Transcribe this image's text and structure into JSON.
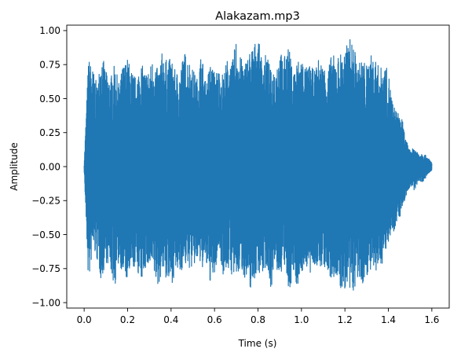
{
  "chart_data": {
    "type": "line",
    "title": "Alakazam.mp3",
    "xlabel": "Time (s)",
    "ylabel": "Amplitude",
    "xlim": [
      -0.08,
      1.68
    ],
    "ylim": [
      -1.04,
      1.04
    ],
    "x_ticks": [
      0.0,
      0.2,
      0.4,
      0.6,
      0.8,
      1.0,
      1.2,
      1.4,
      1.6
    ],
    "x_tick_labels": [
      "0.0",
      "0.2",
      "0.4",
      "0.6",
      "0.8",
      "1.0",
      "1.2",
      "1.4",
      "1.6"
    ],
    "y_ticks": [
      -1.0,
      -0.75,
      -0.5,
      -0.25,
      0.0,
      0.25,
      0.5,
      0.75,
      1.0
    ],
    "y_tick_labels": [
      "−1.00",
      "−0.75",
      "−0.50",
      "−0.25",
      "0.00",
      "0.25",
      "0.50",
      "0.75",
      "1.00"
    ],
    "grid": false,
    "line_color": "#1f77b4",
    "series": [
      {
        "x": [
          0.0,
          0.02,
          0.04,
          0.06,
          0.08,
          0.1,
          0.12,
          0.14,
          0.16,
          0.18,
          0.2,
          0.22,
          0.24,
          0.26,
          0.28,
          0.3,
          0.32,
          0.34,
          0.36,
          0.38,
          0.4,
          0.42,
          0.44,
          0.46,
          0.48,
          0.5,
          0.52,
          0.54,
          0.56,
          0.58,
          0.6,
          0.62,
          0.64,
          0.66,
          0.68,
          0.7,
          0.72,
          0.74,
          0.76,
          0.78,
          0.8,
          0.82,
          0.84,
          0.86,
          0.88,
          0.9,
          0.92,
          0.94,
          0.96,
          0.98,
          1.0,
          1.02,
          1.04,
          1.06,
          1.08,
          1.1,
          1.12,
          1.14,
          1.16,
          1.18,
          1.2,
          1.22,
          1.24,
          1.26,
          1.28,
          1.3,
          1.32,
          1.34,
          1.36,
          1.38,
          1.4,
          1.42,
          1.44,
          1.46,
          1.48,
          1.5,
          1.52,
          1.54,
          1.56,
          1.58,
          1.6
        ],
        "upper": [
          0.02,
          0.8,
          0.72,
          0.6,
          0.85,
          0.7,
          0.65,
          0.75,
          0.62,
          0.75,
          0.8,
          0.7,
          0.65,
          0.77,
          0.7,
          0.72,
          0.82,
          0.7,
          0.85,
          0.78,
          0.8,
          0.7,
          0.7,
          0.85,
          0.8,
          0.72,
          0.65,
          0.85,
          0.6,
          0.77,
          0.7,
          0.72,
          0.68,
          0.8,
          0.75,
          0.95,
          0.8,
          0.77,
          0.85,
          0.9,
          0.95,
          0.78,
          0.84,
          0.7,
          0.75,
          0.85,
          0.8,
          0.9,
          0.7,
          0.78,
          0.82,
          0.73,
          0.75,
          0.7,
          0.8,
          0.75,
          0.72,
          0.83,
          0.8,
          0.84,
          0.85,
          0.95,
          0.9,
          0.75,
          0.8,
          0.75,
          0.82,
          0.8,
          0.72,
          0.76,
          0.7,
          0.47,
          0.4,
          0.38,
          0.2,
          0.12,
          0.14,
          0.1,
          0.1,
          0.07,
          0.03
        ],
        "lower": [
          -0.02,
          -0.88,
          -0.6,
          -0.7,
          -0.85,
          -0.7,
          -0.75,
          -0.9,
          -0.7,
          -0.8,
          -0.85,
          -0.78,
          -0.72,
          -0.88,
          -0.75,
          -0.75,
          -0.8,
          -0.9,
          -0.75,
          -0.85,
          -0.88,
          -0.78,
          -0.8,
          -0.72,
          -0.75,
          -0.75,
          -0.7,
          -0.75,
          -0.73,
          -0.85,
          -0.82,
          -0.6,
          -0.8,
          -0.75,
          -0.8,
          -0.84,
          -0.75,
          -0.82,
          -0.92,
          -0.85,
          -0.77,
          -0.8,
          -0.73,
          -0.9,
          -0.75,
          -0.82,
          -0.72,
          -0.95,
          -0.8,
          -0.88,
          -0.8,
          -0.72,
          -0.82,
          -0.72,
          -0.78,
          -0.72,
          -0.8,
          -0.86,
          -0.8,
          -0.93,
          -0.9,
          -0.97,
          -0.92,
          -0.85,
          -0.88,
          -0.8,
          -0.78,
          -0.82,
          -0.73,
          -0.7,
          -0.55,
          -0.5,
          -0.4,
          -0.35,
          -0.22,
          -0.15,
          -0.18,
          -0.1,
          -0.12,
          -0.06,
          -0.03
        ]
      }
    ]
  }
}
